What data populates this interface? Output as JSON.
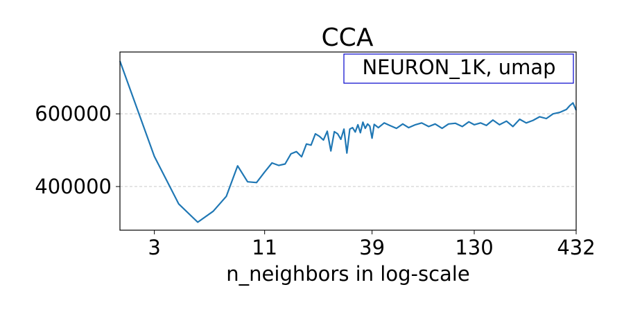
{
  "chart_data": {
    "type": "line",
    "title": "CCA",
    "xlabel": "n_neighbors in log-scale",
    "ylabel": "",
    "x_scale": "log",
    "xlim": [
      2,
      432
    ],
    "ylim": [
      280000,
      770000
    ],
    "x_ticks": [
      3,
      11,
      39,
      130,
      432
    ],
    "x_tick_labels": [
      "3",
      "11",
      "39",
      "130",
      "432"
    ],
    "y_ticks": [
      400000,
      600000
    ],
    "y_tick_labels": [
      "400000",
      "600000"
    ],
    "grid": "horizontal, dashed",
    "legend_text": "NEURON_1K, umap",
    "legend_position": "top-right",
    "line_color": "#1f77b4",
    "legend_border_color": "#0000cc",
    "series": [
      {
        "x": [
          2,
          3,
          4,
          5,
          6,
          7,
          8,
          9,
          10,
          11,
          12,
          13,
          14,
          15,
          16,
          17,
          18,
          19,
          20,
          21,
          22,
          23,
          24,
          25,
          26,
          27,
          28,
          29,
          30,
          31,
          32,
          33,
          34,
          35,
          36,
          37,
          38,
          39,
          40,
          42,
          45,
          48,
          52,
          56,
          60,
          65,
          70,
          76,
          82,
          89,
          96,
          104,
          113,
          122,
          130,
          140,
          150,
          162,
          175,
          190,
          205,
          222,
          240,
          260,
          281,
          304,
          329,
          356,
          385,
          400,
          416,
          432
        ],
        "y": [
          745000,
          483000,
          352000,
          302000,
          332000,
          373000,
          457000,
          413000,
          411000,
          440000,
          465000,
          458000,
          462000,
          490000,
          496000,
          482000,
          517000,
          514000,
          545000,
          538000,
          528000,
          552000,
          498000,
          551000,
          545000,
          530000,
          558000,
          492000,
          558000,
          562000,
          550000,
          570000,
          548000,
          577000,
          560000,
          572000,
          566000,
          533000,
          571000,
          562000,
          575000,
          568000,
          560000,
          572000,
          562000,
          570000,
          575000,
          565000,
          572000,
          560000,
          572000,
          574000,
          565000,
          578000,
          570000,
          575000,
          568000,
          583000,
          570000,
          580000,
          565000,
          585000,
          575000,
          582000,
          592000,
          587000,
          600000,
          604000,
          612000,
          622000,
          630000,
          610000
        ]
      }
    ]
  }
}
